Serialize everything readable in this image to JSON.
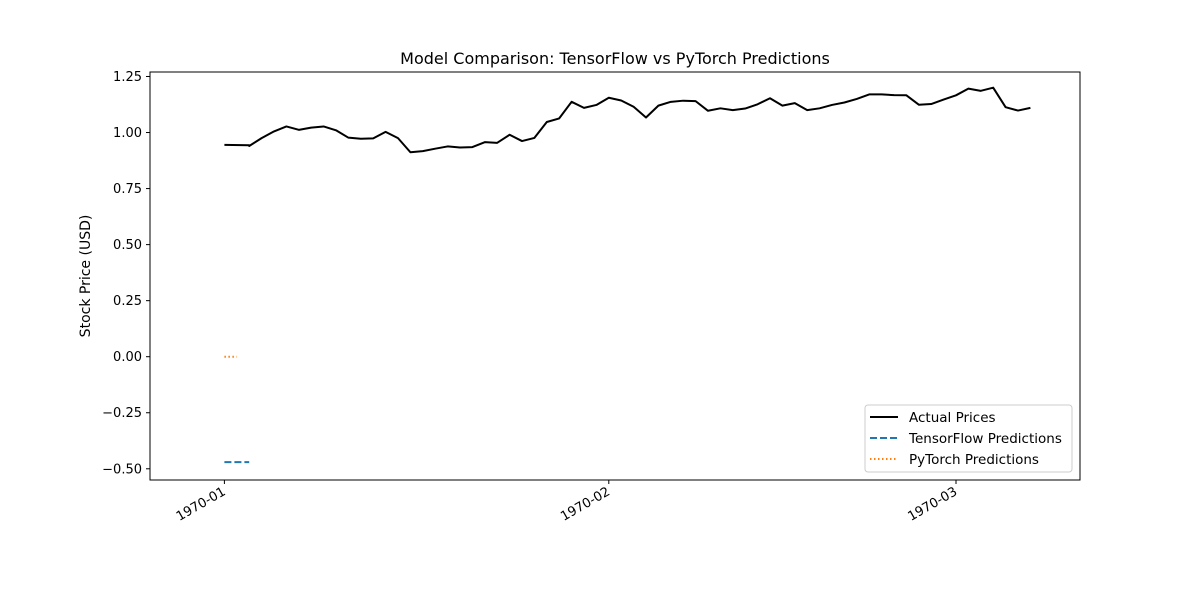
{
  "chart_data": {
    "type": "line",
    "title": "Model Comparison: TensorFlow vs PyTorch Predictions",
    "xlabel": "",
    "ylabel": "Stock Price (USD)",
    "ylim": [
      -0.55,
      1.27
    ],
    "xlim": [
      "1969-12-26",
      "1970-03-11"
    ],
    "x_ticks": [
      "1970-01-01",
      "1970-02-01",
      "1970-03-01"
    ],
    "x_tick_labels": [
      "1970-01",
      "1970-02",
      "1970-03"
    ],
    "y_ticks": [
      -0.5,
      -0.25,
      0.0,
      0.25,
      0.5,
      0.75,
      1.0,
      1.25
    ],
    "y_tick_labels": [
      "−0.50",
      "−0.25",
      "0.00",
      "0.25",
      "0.50",
      "0.75",
      "1.00",
      "1.25"
    ],
    "grid": false,
    "legend_position": "lower-right",
    "series": [
      {
        "name": "Actual Prices",
        "color": "#000000",
        "style": "solid",
        "x": [
          "1970-01-01",
          "1970-01-03",
          "1970-01-03",
          "1970-01-04",
          "1970-01-05",
          "1970-01-06",
          "1970-01-07",
          "1970-01-08",
          "1970-01-09",
          "1970-01-10",
          "1970-01-11",
          "1970-01-12",
          "1970-01-13",
          "1970-01-14",
          "1970-01-15",
          "1970-01-16",
          "1970-01-17",
          "1970-01-18",
          "1970-01-19",
          "1970-01-20",
          "1970-01-21",
          "1970-01-22",
          "1970-01-23",
          "1970-01-24",
          "1970-01-25",
          "1970-01-26",
          "1970-01-27",
          "1970-01-28",
          "1970-01-29",
          "1970-01-30",
          "1970-01-31",
          "1970-02-01",
          "1970-02-02",
          "1970-02-03",
          "1970-02-04",
          "1970-02-05",
          "1970-02-06",
          "1970-02-07",
          "1970-02-08",
          "1970-02-09",
          "1970-02-10",
          "1970-02-11",
          "1970-02-12",
          "1970-02-13",
          "1970-02-14",
          "1970-02-15",
          "1970-02-16",
          "1970-02-17",
          "1970-02-18",
          "1970-02-19",
          "1970-02-20",
          "1970-02-21",
          "1970-02-22",
          "1970-02-23",
          "1970-02-24",
          "1970-02-25",
          "1970-02-26",
          "1970-02-27",
          "1970-02-28",
          "1970-03-01",
          "1970-03-02",
          "1970-03-03",
          "1970-03-04",
          "1970-03-05",
          "1970-03-06",
          "1970-03-07"
        ],
        "values": [
          0.945,
          0.943,
          0.94,
          0.975,
          1.005,
          1.027,
          1.012,
          1.022,
          1.027,
          1.01,
          0.977,
          0.972,
          0.974,
          1.003,
          0.975,
          0.912,
          0.917,
          0.928,
          0.938,
          0.933,
          0.935,
          0.957,
          0.954,
          0.99,
          0.962,
          0.976,
          1.047,
          1.063,
          1.137,
          1.11,
          1.123,
          1.155,
          1.143,
          1.115,
          1.067,
          1.12,
          1.137,
          1.142,
          1.14,
          1.097,
          1.108,
          1.1,
          1.107,
          1.126,
          1.153,
          1.12,
          1.131,
          1.1,
          1.108,
          1.123,
          1.134,
          1.15,
          1.17,
          1.17,
          1.167,
          1.166,
          1.124,
          1.127,
          1.147,
          1.166,
          1.196,
          1.186,
          1.2,
          1.113,
          1.098,
          1.11
        ]
      },
      {
        "name": "TensorFlow Predictions",
        "color": "#1f77b4",
        "style": "dashed",
        "x": [
          "1970-01-01",
          "1970-01-03"
        ],
        "values": [
          -0.47,
          -0.47
        ]
      },
      {
        "name": "PyTorch Predictions",
        "color": "#ff7f0e",
        "style": "dotted",
        "x": [
          "1970-01-01",
          "1970-01-02"
        ],
        "values": [
          0.0,
          0.0
        ]
      }
    ]
  }
}
